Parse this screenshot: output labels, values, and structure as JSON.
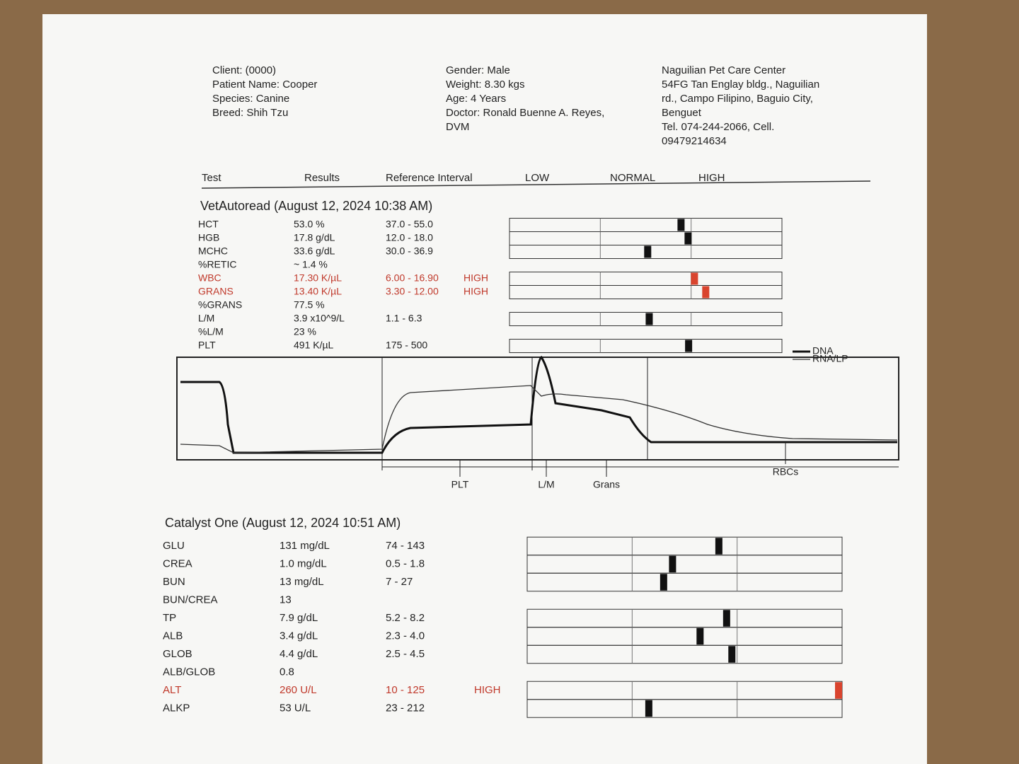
{
  "header": {
    "patient": [
      "Client:  (0000)",
      "Patient Name: Cooper",
      "Species: Canine",
      "Breed: Shih Tzu"
    ],
    "details": [
      "Gender: Male",
      "Weight: 8.30 kgs",
      "Age: 4 Years",
      "Doctor: Ronald Buenne A. Reyes,",
      "DVM"
    ],
    "clinic": [
      "Naguilian Pet Care Center",
      "54FG Tan Englay bldg., Naguilian",
      "rd., Campo Filipino, Baguio City,",
      "Benguet",
      "Tel. 074-244-2066,      Cell.",
      "09479214634"
    ]
  },
  "columns": [
    "Test",
    "Results",
    "Reference Interval",
    "LOW",
    "NORMAL",
    "HIGH"
  ],
  "sections": [
    {
      "title": "VetAutoread (August 12, 2024 10:38 AM)",
      "rows": [
        {
          "test": "HCT",
          "result": "53.0 %",
          "range": "37.0 - 55.0"
        },
        {
          "test": "HGB",
          "result": "17.8 g/dL",
          "range": "12.0 - 18.0"
        },
        {
          "test": "MCHC",
          "result": "33.6 g/dL",
          "range": "30.0 - 36.9"
        },
        {
          "test": "%RETIC",
          "result": "~ 1.4 %"
        },
        {
          "test": "WBC",
          "result": "17.30 K/µL",
          "range": "6.00 - 16.90",
          "flag": "HIGH"
        },
        {
          "test": "GRANS",
          "result": "13.40 K/µL",
          "range": "3.30 - 12.00",
          "flag": "HIGH"
        },
        {
          "test": "%GRANS",
          "result": "77.5 %"
        },
        {
          "test": "L/M",
          "result": "3.9 x10^9/L",
          "range": "1.1 - 6.3"
        },
        {
          "test": "%L/M",
          "result": "23 %"
        },
        {
          "test": "PLT",
          "result": "491 K/µL",
          "range": "175 - 500"
        }
      ]
    },
    {
      "title": "Catalyst One (August 12, 2024 10:51 AM)",
      "rows": [
        {
          "test": "GLU",
          "result": "131 mg/dL",
          "range": "74 - 143"
        },
        {
          "test": "CREA",
          "result": "1.0 mg/dL",
          "range": "0.5 - 1.8"
        },
        {
          "test": "BUN",
          "result": "13 mg/dL",
          "range": "7 - 27"
        },
        {
          "test": "BUN/CREA",
          "result": "13"
        },
        {
          "test": "TP",
          "result": "7.9 g/dL",
          "range": "5.2 - 8.2"
        },
        {
          "test": "ALB",
          "result": "3.4 g/dL",
          "range": "2.3 - 4.0"
        },
        {
          "test": "GLOB",
          "result": "4.4 g/dL",
          "range": "2.5 - 4.5"
        },
        {
          "test": "ALB/GLOB",
          "result": "0.8"
        },
        {
          "test": "ALT",
          "result": "260 U/L",
          "range": "10 - 125",
          "flag": "HIGH"
        },
        {
          "test": "ALKP",
          "result": "53 U/L",
          "range": "23 - 212"
        }
      ]
    }
  ],
  "graph": {
    "legend": [
      "DNA",
      "RNA/LP"
    ],
    "labels": [
      "PLT",
      "L/M",
      "Grans",
      "RBCs"
    ]
  }
}
